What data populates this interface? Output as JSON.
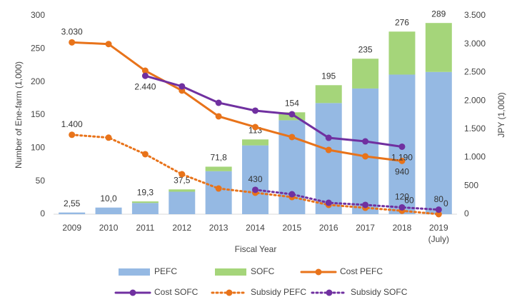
{
  "chart_data": {
    "type": "bar-line",
    "x_label": "Fiscal Year",
    "y_label": "Number of Ene-farm (1,000)",
    "y2_label": "JPY (1,000)",
    "categories": [
      "2009",
      "2010",
      "2011",
      "2012",
      "2013",
      "2014",
      "2015",
      "2016",
      "2017",
      "2018",
      "2019\n(July)"
    ],
    "ylim": [
      0,
      300
    ],
    "yticks": [
      0,
      50,
      100,
      150,
      200,
      250,
      300
    ],
    "y2lim": [
      0,
      3500
    ],
    "y2ticks": [
      0,
      500,
      {
        "value": 1000,
        "label": "1.000"
      },
      {
        "value": 1500,
        "label": "1.500"
      },
      {
        "value": 2000,
        "label": "2.000"
      },
      {
        "value": 2500,
        "label": "2.500"
      },
      {
        "value": 3000,
        "label": "3.000"
      },
      {
        "value": 3500,
        "label": "3.500"
      }
    ],
    "totals": {
      "values": [
        2.55,
        10.0,
        19.3,
        37.5,
        71.8,
        113,
        154,
        195,
        235,
        276,
        289
      ],
      "value_labels": [
        "2,55",
        "10,0",
        "19,3",
        "37,5",
        "71,8",
        "113",
        "154",
        "195",
        "235",
        "276",
        "289"
      ]
    },
    "series": [
      {
        "name": "PEFC",
        "kind": "bar",
        "color": "#95b9e3",
        "values": [
          2.55,
          10.0,
          17,
          34,
          65,
          104,
          142,
          168,
          190,
          211,
          215
        ]
      },
      {
        "name": "SOFC",
        "kind": "bar",
        "color": "#a5d57a",
        "values": [
          0,
          0,
          2.3,
          3.5,
          6.8,
          9,
          12,
          27,
          45,
          65,
          74
        ]
      },
      {
        "name": "Cost PEFC",
        "kind": "line",
        "axis": "y2",
        "dashed": false,
        "color": "#e8731a",
        "values": [
          3030,
          3000,
          2530,
          2180,
          1725,
          1536,
          1360,
          1133,
          1020,
          940,
          null
        ],
        "value_labels": [
          "3.030",
          null,
          null,
          null,
          null,
          null,
          null,
          null,
          null,
          "940",
          null
        ]
      },
      {
        "name": "Cost SOFC",
        "kind": "line",
        "axis": "y2",
        "dashed": false,
        "color": "#7030a0",
        "values": [
          null,
          null,
          2440,
          2254,
          1964,
          1826,
          1763,
          1347,
          1284,
          1190,
          null
        ],
        "value_labels": [
          null,
          null,
          "2.440",
          null,
          null,
          null,
          null,
          null,
          null,
          "1.190",
          null
        ]
      },
      {
        "name": "Subsidy PEFC",
        "kind": "line",
        "axis": "y2",
        "dashed": true,
        "color": "#e8731a",
        "values": [
          1400,
          1350,
          1058,
          705,
          453,
          378,
          302,
          164,
          113,
          60,
          0
        ],
        "value_labels": [
          "1.400",
          null,
          null,
          null,
          null,
          null,
          null,
          null,
          null,
          "60",
          "0"
        ]
      },
      {
        "name": "Subsidy SOFC",
        "kind": "line",
        "axis": "y2",
        "dashed": true,
        "color": "#7030a0",
        "values": [
          null,
          null,
          null,
          null,
          null,
          430,
          352,
          201,
          164,
          120,
          80
        ],
        "value_labels": [
          null,
          null,
          null,
          null,
          null,
          "430",
          null,
          null,
          null,
          "120",
          "80"
        ]
      }
    ]
  }
}
